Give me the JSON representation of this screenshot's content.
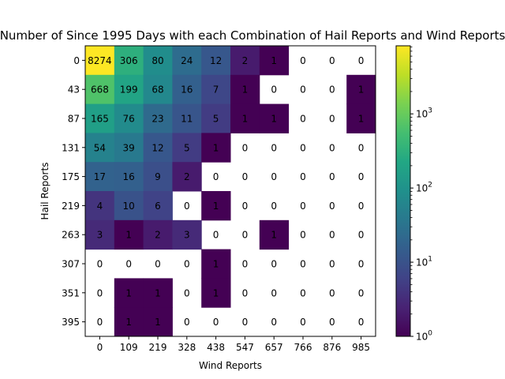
{
  "chart_data": {
    "type": "heatmap",
    "title": "Number of Since 1995 Days with each Combination of Hail Reports and Wind Reports",
    "xlabel": "Wind Reports",
    "ylabel": "Hail Reports",
    "x_ticks": [
      "0",
      "109",
      "219",
      "328",
      "438",
      "547",
      "657",
      "766",
      "876",
      "985"
    ],
    "y_ticks": [
      "0",
      "43",
      "87",
      "131",
      "175",
      "219",
      "263",
      "307",
      "351",
      "395"
    ],
    "values": [
      [
        8274,
        306,
        80,
        24,
        12,
        2,
        1,
        0,
        0,
        0
      ],
      [
        668,
        199,
        68,
        16,
        7,
        1,
        0,
        0,
        0,
        1
      ],
      [
        165,
        76,
        23,
        11,
        5,
        1,
        1,
        0,
        0,
        1
      ],
      [
        54,
        39,
        12,
        5,
        1,
        0,
        0,
        0,
        0,
        0
      ],
      [
        17,
        16,
        9,
        2,
        0,
        0,
        0,
        0,
        0,
        0
      ],
      [
        4,
        10,
        6,
        0,
        1,
        0,
        0,
        0,
        0,
        0
      ],
      [
        3,
        1,
        2,
        3,
        0,
        0,
        1,
        0,
        0,
        0
      ],
      [
        0,
        0,
        0,
        0,
        1,
        0,
        0,
        0,
        0,
        0
      ],
      [
        0,
        1,
        1,
        0,
        1,
        0,
        0,
        0,
        0,
        0
      ],
      [
        0,
        1,
        1,
        0,
        0,
        0,
        0,
        0,
        0,
        0
      ]
    ],
    "zero_cells": "blank",
    "colorbar": {
      "scale": "log",
      "range": [
        1,
        8274
      ],
      "colormap": "viridis",
      "ticks": [
        {
          "base": "10",
          "exp": "0",
          "value": 1
        },
        {
          "base": "10",
          "exp": "1",
          "value": 10
        },
        {
          "base": "10",
          "exp": "2",
          "value": 100
        },
        {
          "base": "10",
          "exp": "3",
          "value": 1000
        }
      ]
    },
    "grid": false
  }
}
